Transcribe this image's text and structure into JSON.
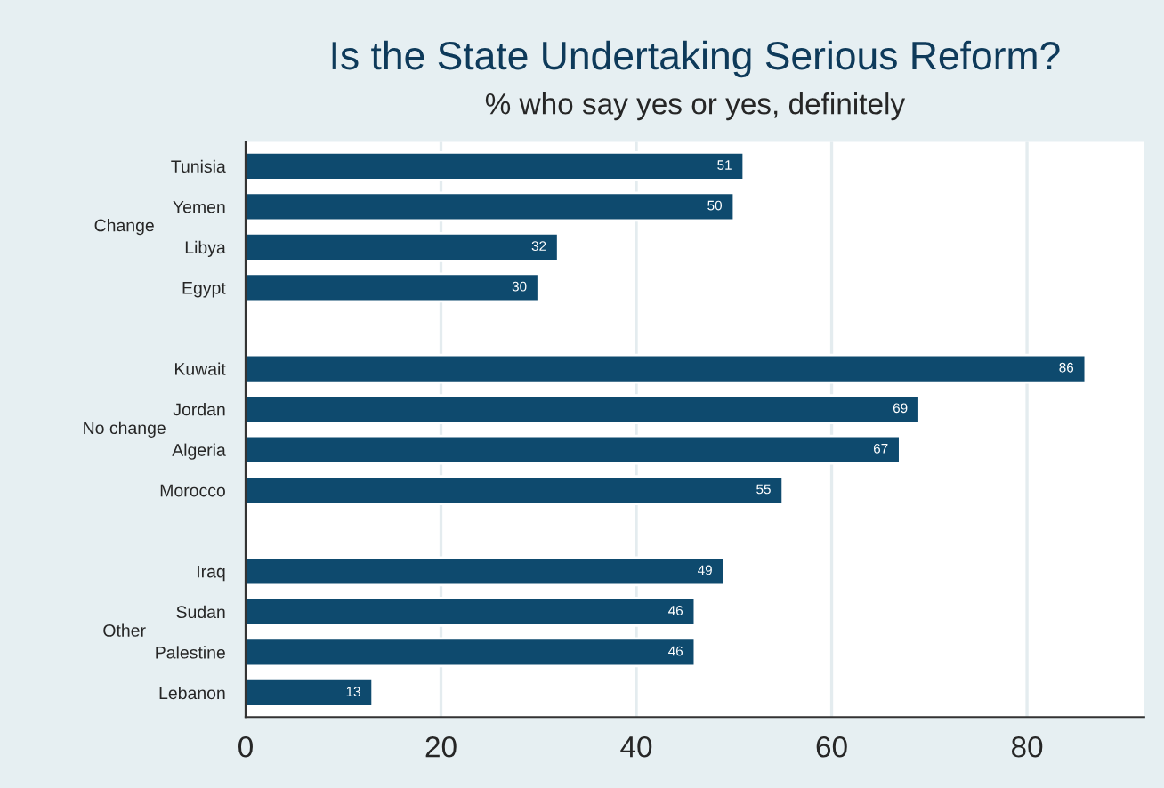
{
  "chart_data": {
    "type": "bar",
    "orientation": "horizontal",
    "title": "Is the State Undertaking Serious Reform?",
    "subtitle": "% who say yes or yes, definitely",
    "categories": [
      "Tunisia",
      "Yemen",
      "Libya",
      "Egypt",
      null,
      "Kuwait",
      "Jordan",
      "Algeria",
      "Morocco",
      null,
      "Iraq",
      "Sudan",
      "Palestine",
      "Lebanon"
    ],
    "values": [
      51,
      50,
      32,
      30,
      null,
      86,
      69,
      67,
      55,
      null,
      49,
      46,
      46,
      13
    ],
    "color": "#0e4a6e",
    "annotations": [
      "Change",
      "No change",
      "Other"
    ],
    "xlim": [
      0,
      92
    ],
    "xticks": [
      0,
      20,
      40,
      60,
      80
    ],
    "grid": "x",
    "data_labels": true
  }
}
